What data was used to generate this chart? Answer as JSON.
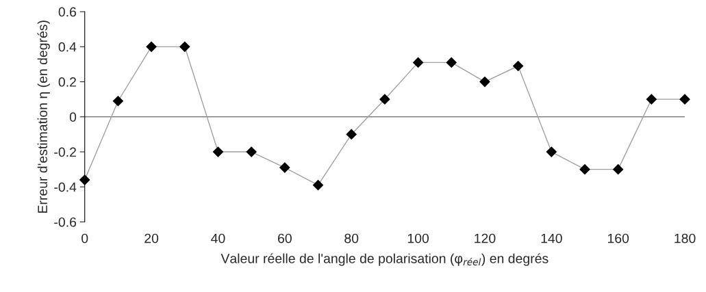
{
  "chart_data": {
    "type": "line",
    "xlabel": "Valeur réelle de l'angle de polarisation (φ$_{réel}$) en degrés",
    "ylabel": "Erreur d'estimation η (en degrés)",
    "x": [
      0,
      10,
      20,
      30,
      40,
      50,
      60,
      70,
      80,
      90,
      100,
      110,
      120,
      130,
      140,
      150,
      160,
      170,
      180
    ],
    "series": [
      {
        "color": "#000000",
        "values": [
          -0.36,
          0.09,
          0.4,
          0.4,
          -0.2,
          -0.2,
          -0.29,
          -0.39,
          -0.1,
          0.1,
          0.31,
          0.31,
          0.2,
          0.29,
          -0.2,
          -0.3,
          -0.3,
          0.1,
          0.1
        ]
      }
    ],
    "xlim": [
      0,
      180
    ],
    "xticks": [
      0,
      20,
      40,
      60,
      80,
      100,
      120,
      140,
      160,
      180
    ],
    "ylim": [
      -0.6,
      0.6
    ],
    "yticks": [
      -0.6,
      -0.4,
      -0.2,
      0,
      0.2,
      0.4,
      0.6
    ],
    "ref_lines": [
      {
        "axis": "y",
        "value": 0,
        "color": "#808080"
      }
    ],
    "marker": "diamond",
    "line_style": "solid",
    "grid": false,
    "legend": false
  }
}
